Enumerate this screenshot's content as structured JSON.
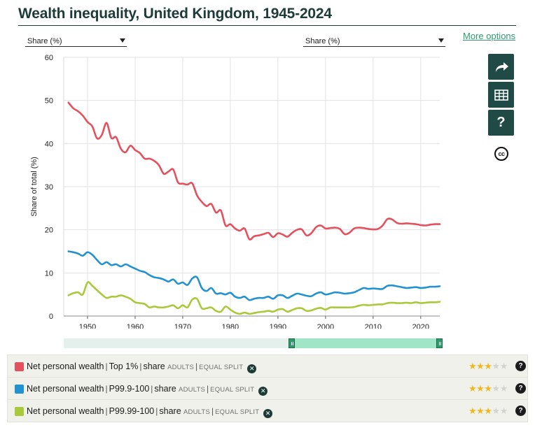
{
  "title": "Wealth inequality, United Kingdom, 1945-2024",
  "selectors": {
    "left": "Share (%)",
    "right": "Share (%)"
  },
  "more_options": "More options",
  "sidebar": {
    "share_icon": "share-arrow-icon",
    "table_icon": "table-icon",
    "help_label": "?",
    "cc_label": "cc"
  },
  "colors": {
    "accent": "#1f4a45",
    "top1": "#e5505e",
    "p999": "#2392d1",
    "p9999": "#a9c93a"
  },
  "chart_data": {
    "type": "line",
    "title": "",
    "xlabel": "",
    "ylabel": "Share of total  (%)",
    "xlim": [
      1945,
      2024
    ],
    "ylim": [
      0,
      60
    ],
    "yticks": [
      0,
      10,
      20,
      30,
      40,
      50,
      60
    ],
    "xticks": [
      1950,
      1960,
      1970,
      1980,
      1990,
      2000,
      2010,
      2020
    ],
    "grid": true,
    "legend": "bottom",
    "series": [
      {
        "name": "Net personal wealth | Top 1% | share",
        "color": "#e5505e",
        "x": [
          1946,
          1947,
          1948,
          1949,
          1950,
          1951,
          1952,
          1953,
          1954,
          1955,
          1956,
          1957,
          1958,
          1959,
          1960,
          1961,
          1962,
          1963,
          1964,
          1965,
          1966,
          1967,
          1968,
          1969,
          1970,
          1971,
          1972,
          1973,
          1974,
          1975,
          1976,
          1977,
          1978,
          1979,
          1980,
          1981,
          1982,
          1983,
          1984,
          1985,
          1986,
          1987,
          1988,
          1989,
          1990,
          1991,
          1992,
          1993,
          1994,
          1995,
          1996,
          1997,
          1998,
          1999,
          2000,
          2001,
          2002,
          2003,
          2004,
          2005,
          2006,
          2007,
          2008,
          2009,
          2010,
          2011,
          2012,
          2013,
          2014,
          2015,
          2016,
          2017,
          2018,
          2019,
          2020,
          2021,
          2022,
          2023,
          2024
        ],
        "values": [
          49.5,
          48.2,
          47.5,
          46.5,
          45.0,
          44.0,
          41.2,
          42.0,
          44.8,
          41.3,
          41.5,
          38.8,
          38.0,
          39.5,
          38.5,
          37.8,
          36.5,
          36.5,
          36.0,
          35.0,
          33.0,
          33.5,
          34.0,
          31.0,
          30.7,
          30.5,
          30.8,
          28.0,
          26.5,
          25.5,
          26.0,
          24.0,
          24.5,
          21.0,
          21.3,
          20.3,
          19.8,
          20.3,
          17.8,
          18.5,
          18.7,
          19.0,
          19.3,
          18.3,
          19.2,
          18.9,
          18.4,
          19.3,
          20.0,
          20.1,
          18.7,
          19.2,
          20.6,
          21.0,
          20.3,
          20.4,
          20.5,
          20.2,
          19.0,
          19.3,
          20.3,
          20.5,
          20.4,
          20.2,
          20.1,
          20.2,
          21.0,
          22.5,
          22.4,
          21.6,
          21.4,
          21.5,
          21.4,
          21.3,
          21.1,
          21.0,
          21.2,
          21.3,
          21.3
        ]
      },
      {
        "name": "Net personal wealth | P99.9-100 | share",
        "color": "#2392d1",
        "x": [
          1946,
          1947,
          1948,
          1949,
          1950,
          1951,
          1952,
          1953,
          1954,
          1955,
          1956,
          1957,
          1958,
          1959,
          1960,
          1961,
          1962,
          1963,
          1964,
          1965,
          1966,
          1967,
          1968,
          1969,
          1970,
          1971,
          1972,
          1973,
          1974,
          1975,
          1976,
          1977,
          1978,
          1979,
          1980,
          1981,
          1982,
          1983,
          1984,
          1985,
          1986,
          1987,
          1988,
          1989,
          1990,
          1991,
          1992,
          1993,
          1994,
          1995,
          1996,
          1997,
          1998,
          1999,
          2000,
          2001,
          2002,
          2003,
          2004,
          2005,
          2006,
          2007,
          2008,
          2009,
          2010,
          2011,
          2012,
          2013,
          2014,
          2015,
          2016,
          2017,
          2018,
          2019,
          2020,
          2021,
          2022,
          2023,
          2024
        ],
        "values": [
          15.0,
          14.8,
          14.5,
          14.0,
          14.8,
          14.2,
          13.0,
          12.0,
          12.5,
          11.8,
          12.0,
          11.5,
          12.0,
          11.5,
          11.0,
          10.5,
          10.2,
          9.5,
          9.0,
          8.8,
          8.5,
          8.0,
          8.5,
          7.5,
          7.8,
          7.2,
          8.7,
          9.0,
          6.5,
          5.8,
          6.5,
          5.2,
          5.3,
          5.0,
          5.4,
          4.5,
          4.2,
          4.5,
          3.7,
          4.0,
          4.2,
          4.2,
          4.5,
          4.0,
          4.8,
          4.8,
          4.2,
          4.7,
          5.2,
          5.0,
          4.7,
          4.6,
          5.2,
          5.5,
          5.0,
          5.2,
          5.5,
          5.4,
          5.2,
          5.3,
          5.5,
          6.0,
          6.5,
          6.3,
          6.4,
          6.3,
          6.3,
          7.0,
          7.1,
          6.9,
          6.7,
          6.5,
          6.6,
          6.7,
          6.5,
          6.6,
          6.8,
          6.8,
          6.9
        ]
      },
      {
        "name": "Net personal wealth | P99.99-100 | share",
        "color": "#a9c93a",
        "x": [
          1946,
          1947,
          1948,
          1949,
          1950,
          1951,
          1952,
          1953,
          1954,
          1955,
          1956,
          1957,
          1958,
          1959,
          1960,
          1961,
          1962,
          1963,
          1964,
          1965,
          1966,
          1967,
          1968,
          1969,
          1970,
          1971,
          1972,
          1973,
          1974,
          1975,
          1976,
          1977,
          1978,
          1979,
          1980,
          1981,
          1982,
          1983,
          1984,
          1985,
          1986,
          1987,
          1988,
          1989,
          1990,
          1991,
          1992,
          1993,
          1994,
          1995,
          1996,
          1997,
          1998,
          1999,
          2000,
          2001,
          2002,
          2003,
          2004,
          2005,
          2006,
          2007,
          2008,
          2009,
          2010,
          2011,
          2012,
          2013,
          2014,
          2015,
          2016,
          2017,
          2018,
          2019,
          2020,
          2021,
          2022,
          2023,
          2024
        ],
        "values": [
          4.8,
          5.3,
          5.5,
          5.0,
          7.8,
          7.0,
          6.0,
          5.0,
          4.2,
          4.5,
          4.5,
          4.8,
          4.5,
          4.0,
          3.2,
          3.0,
          2.8,
          2.0,
          2.2,
          2.0,
          2.0,
          2.2,
          2.5,
          1.8,
          2.5,
          2.0,
          3.8,
          4.0,
          1.8,
          1.8,
          2.0,
          1.2,
          1.0,
          2.2,
          1.5,
          0.8,
          0.5,
          0.8,
          0.5,
          0.7,
          0.9,
          1.0,
          1.2,
          1.0,
          1.5,
          1.6,
          1.0,
          1.4,
          1.8,
          1.8,
          1.2,
          1.3,
          1.7,
          1.9,
          1.5,
          2.0,
          2.0,
          2.0,
          2.0,
          2.0,
          2.1,
          2.4,
          2.6,
          2.5,
          2.6,
          2.7,
          2.7,
          3.0,
          3.1,
          3.0,
          3.0,
          3.1,
          3.0,
          3.2,
          3.0,
          3.1,
          3.2,
          3.2,
          3.3
        ]
      }
    ]
  },
  "range_slider": {
    "start_fraction": 0.6,
    "end_fraction": 1.0
  },
  "legend_items": [
    {
      "main": "Net personal wealth",
      "code": "Top 1%",
      "share": "share",
      "pop": "ADULTS",
      "split": "EQUAL SPLIT",
      "remove": "✕",
      "stars": 3,
      "star_max": 5,
      "help": "?",
      "color": "#e5505e"
    },
    {
      "main": "Net personal wealth",
      "code": "P99.9-100",
      "share": "share",
      "pop": "ADULTS",
      "split": "EQUAL SPLIT",
      "remove": "✕",
      "stars": 3,
      "star_max": 5,
      "help": "?",
      "color": "#2392d1"
    },
    {
      "main": "Net personal wealth",
      "code": "P99.99-100",
      "share": "share",
      "pop": "ADULTS",
      "split": "EQUAL SPLIT",
      "remove": "✕",
      "stars": 3,
      "star_max": 5,
      "help": "?",
      "color": "#a9c93a"
    }
  ]
}
